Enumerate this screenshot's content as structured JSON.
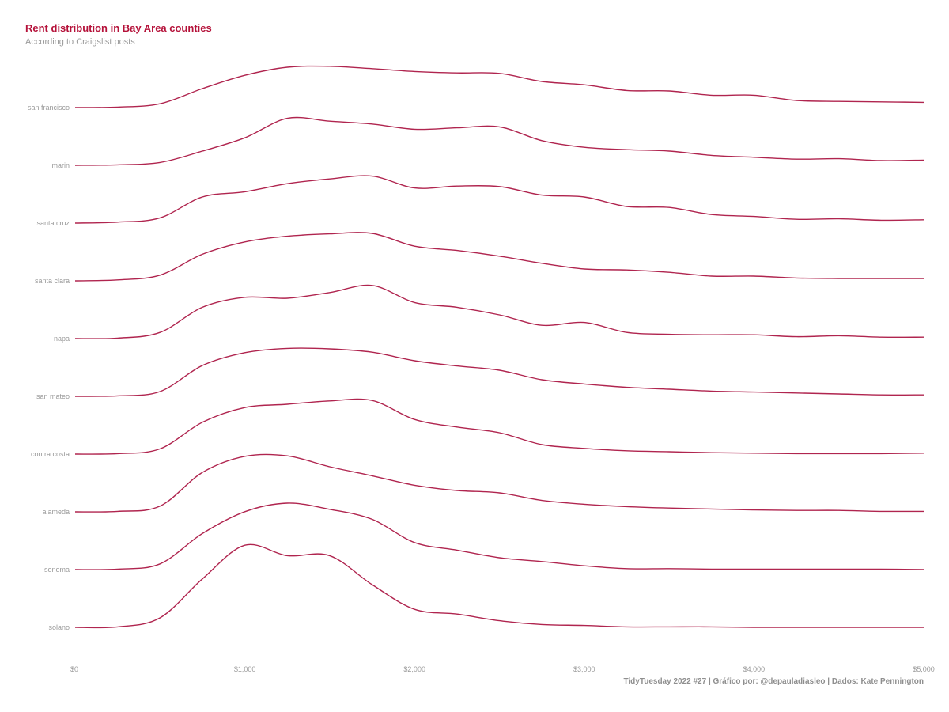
{
  "title": "Rent distribution in Bay Area counties",
  "subtitle": "According to Craigslist posts",
  "caption": "TidyTuesday 2022 #27 | Gráfico por: @depauladiasleo | Dados: Kate Pennington",
  "colors": {
    "accent": "#b5123a",
    "line": "#b0254f",
    "text_muted": "#9a9a9a"
  },
  "chart_data": {
    "type": "ridgeline",
    "xlim": [
      0,
      5000
    ],
    "x_ticks": [
      0,
      1000,
      2000,
      3000,
      4000,
      5000
    ],
    "x_tick_labels": [
      "$0",
      "$1,000",
      "$2,000",
      "$3,000",
      "$4,000",
      "$5,000"
    ],
    "xlabel": "",
    "ylabel": "",
    "grid": false,
    "legend": "none",
    "x": [
      0,
      250,
      500,
      750,
      1000,
      1250,
      1500,
      1750,
      2000,
      2250,
      2500,
      2750,
      3000,
      3250,
      3500,
      3750,
      4000,
      4250,
      4500,
      4750,
      5000
    ],
    "series": [
      {
        "name": "san francisco",
        "density": [
          0.0,
          0.01,
          0.08,
          0.4,
          0.68,
          0.85,
          0.87,
          0.82,
          0.76,
          0.73,
          0.72,
          0.55,
          0.48,
          0.36,
          0.35,
          0.26,
          0.26,
          0.15,
          0.13,
          0.12,
          0.11
        ]
      },
      {
        "name": "marin",
        "density": [
          0.0,
          0.01,
          0.06,
          0.3,
          0.58,
          0.99,
          0.93,
          0.87,
          0.76,
          0.79,
          0.81,
          0.52,
          0.38,
          0.33,
          0.3,
          0.21,
          0.17,
          0.13,
          0.14,
          0.1,
          0.11
        ]
      },
      {
        "name": "santa cruz",
        "density": [
          0.0,
          0.02,
          0.11,
          0.55,
          0.66,
          0.83,
          0.93,
          0.99,
          0.74,
          0.78,
          0.77,
          0.59,
          0.55,
          0.35,
          0.33,
          0.18,
          0.14,
          0.08,
          0.09,
          0.06,
          0.07
        ]
      },
      {
        "name": "santa clara",
        "density": [
          0.0,
          0.02,
          0.12,
          0.56,
          0.82,
          0.94,
          0.99,
          1.0,
          0.73,
          0.64,
          0.52,
          0.37,
          0.25,
          0.23,
          0.18,
          0.1,
          0.1,
          0.06,
          0.05,
          0.05,
          0.05
        ]
      },
      {
        "name": "napa",
        "density": [
          0.0,
          0.01,
          0.13,
          0.66,
          0.87,
          0.85,
          0.97,
          1.12,
          0.76,
          0.66,
          0.5,
          0.28,
          0.34,
          0.13,
          0.09,
          0.08,
          0.08,
          0.04,
          0.06,
          0.03,
          0.03
        ]
      },
      {
        "name": "san mateo",
        "density": [
          0.0,
          0.01,
          0.1,
          0.65,
          0.92,
          1.01,
          1.0,
          0.93,
          0.75,
          0.64,
          0.55,
          0.35,
          0.26,
          0.19,
          0.15,
          0.11,
          0.09,
          0.07,
          0.05,
          0.03,
          0.03
        ]
      },
      {
        "name": "contra costa",
        "density": [
          0.0,
          0.01,
          0.11,
          0.67,
          0.98,
          1.05,
          1.12,
          1.13,
          0.73,
          0.57,
          0.45,
          0.2,
          0.12,
          0.07,
          0.05,
          0.03,
          0.02,
          0.01,
          0.01,
          0.01,
          0.02
        ]
      },
      {
        "name": "alameda",
        "density": [
          0.0,
          0.01,
          0.12,
          0.83,
          1.17,
          1.18,
          0.95,
          0.76,
          0.56,
          0.45,
          0.4,
          0.24,
          0.16,
          0.11,
          0.08,
          0.06,
          0.04,
          0.03,
          0.03,
          0.01,
          0.01
        ]
      },
      {
        "name": "sonoma",
        "density": [
          0.0,
          0.01,
          0.12,
          0.76,
          1.22,
          1.4,
          1.27,
          1.06,
          0.57,
          0.41,
          0.25,
          0.17,
          0.08,
          0.02,
          0.02,
          0.01,
          0.01,
          0.01,
          0.01,
          0.01,
          0.0
        ]
      },
      {
        "name": "solano",
        "density": [
          0.0,
          0.01,
          0.2,
          1.02,
          1.73,
          1.51,
          1.51,
          0.9,
          0.38,
          0.28,
          0.14,
          0.06,
          0.04,
          0.01,
          0.01,
          0.01,
          0.0,
          0.0,
          0.0,
          0.0,
          0.0
        ]
      }
    ]
  }
}
